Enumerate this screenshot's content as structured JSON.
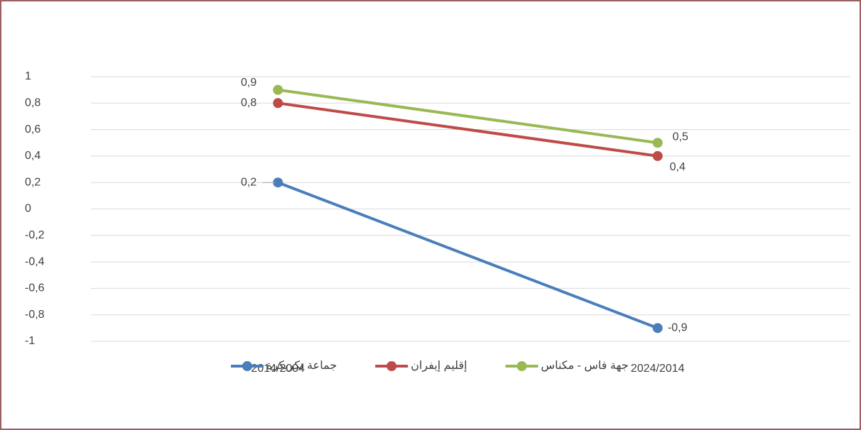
{
  "chart_data": {
    "type": "line",
    "categories": [
      "2014/2004",
      "2024/2014"
    ],
    "series": [
      {
        "name": "جماعة تكريكرة",
        "color": "#4a7ebb",
        "values": [
          0.2,
          -0.9
        ],
        "value_labels": [
          "0,2",
          "-0,9"
        ]
      },
      {
        "name": "إقليم إيفران",
        "color": "#be4b48",
        "values": [
          0.8,
          0.4
        ],
        "value_labels": [
          "0,8",
          "0,4"
        ]
      },
      {
        "name": "جهة فاس - مكناس",
        "color": "#98b954",
        "values": [
          0.9,
          0.5
        ],
        "value_labels": [
          "0,9",
          "0,5"
        ]
      }
    ],
    "ylim": [
      -1,
      1
    ],
    "yticks": [
      -1,
      {
        "value": -0.8,
        "label": "-0,8"
      },
      {
        "value": -0.6,
        "label": "-0,6"
      },
      {
        "value": -0.4,
        "label": "-0,4"
      },
      {
        "value": -0.2,
        "label": "-0,2"
      },
      0,
      {
        "value": 0.2,
        "label": "0,2"
      },
      {
        "value": 0.4,
        "label": "0,4"
      },
      {
        "value": 0.6,
        "label": "0,6"
      },
      {
        "value": 0.8,
        "label": "0,8"
      },
      1
    ],
    "grid": true,
    "legend": "bottom"
  }
}
